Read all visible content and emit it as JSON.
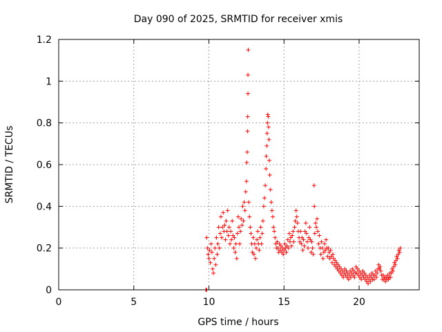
{
  "chart_data": {
    "type": "scatter",
    "title": "Day 090 of 2025, SRMTID for receiver xmis",
    "xlabel": "GPS time / hours",
    "ylabel": "SRMTID / TECUs",
    "xlim": [
      0,
      24
    ],
    "ylim": [
      0,
      1.2
    ],
    "xticks": [
      0,
      5,
      10,
      15,
      20
    ],
    "xtick_labels": [
      "0",
      "5",
      "10",
      "15",
      "20"
    ],
    "yticks": [
      0,
      0.2,
      0.4,
      0.6,
      0.8,
      1.0,
      1.2
    ],
    "ytick_labels": [
      "0",
      "0.2",
      "0.4",
      "0.6",
      "0.8",
      "1",
      "1.2"
    ],
    "grid": true,
    "marker": "+",
    "color": "#ff0000",
    "series": [
      {
        "name": "SRMTID",
        "points": [
          [
            9.8,
            0.0
          ],
          [
            9.82,
            0.0
          ],
          [
            9.85,
            0.0
          ],
          [
            9.85,
            0.25
          ],
          [
            9.9,
            0.2
          ],
          [
            9.95,
            0.17
          ],
          [
            10.0,
            0.15
          ],
          [
            10.05,
            0.19
          ],
          [
            10.1,
            0.13
          ],
          [
            10.15,
            0.22
          ],
          [
            10.2,
            0.18
          ],
          [
            10.25,
            0.1
          ],
          [
            10.3,
            0.08
          ],
          [
            10.35,
            0.15
          ],
          [
            10.4,
            0.2
          ],
          [
            10.45,
            0.12
          ],
          [
            10.5,
            0.25
          ],
          [
            10.55,
            0.17
          ],
          [
            10.6,
            0.22
          ],
          [
            10.65,
            0.3
          ],
          [
            10.7,
            0.2
          ],
          [
            10.75,
            0.27
          ],
          [
            10.8,
            0.35
          ],
          [
            10.85,
            0.25
          ],
          [
            10.9,
            0.3
          ],
          [
            10.95,
            0.37
          ],
          [
            11.0,
            0.28
          ],
          [
            11.05,
            0.31
          ],
          [
            11.1,
            0.24
          ],
          [
            11.15,
            0.33
          ],
          [
            11.2,
            0.28
          ],
          [
            11.25,
            0.38
          ],
          [
            11.3,
            0.26
          ],
          [
            11.35,
            0.3
          ],
          [
            11.4,
            0.22
          ],
          [
            11.45,
            0.28
          ],
          [
            11.5,
            0.24
          ],
          [
            11.55,
            0.33
          ],
          [
            11.6,
            0.26
          ],
          [
            11.65,
            0.2
          ],
          [
            11.7,
            0.25
          ],
          [
            11.75,
            0.18
          ],
          [
            11.8,
            0.22
          ],
          [
            11.85,
            0.15
          ],
          [
            11.9,
            0.27
          ],
          [
            11.95,
            0.35
          ],
          [
            12.0,
            0.3
          ],
          [
            12.05,
            0.22
          ],
          [
            12.1,
            0.28
          ],
          [
            12.15,
            0.34
          ],
          [
            12.2,
            0.31
          ],
          [
            12.25,
            0.4
          ],
          [
            12.3,
            0.33
          ],
          [
            12.35,
            0.42
          ],
          [
            12.4,
            0.38
          ],
          [
            12.45,
            0.47
          ],
          [
            12.5,
            0.52
          ],
          [
            12.52,
            0.61
          ],
          [
            12.55,
            0.66
          ],
          [
            12.57,
            0.76
          ],
          [
            12.58,
            0.83
          ],
          [
            12.6,
            0.94
          ],
          [
            12.6,
            1.03
          ],
          [
            12.62,
            1.15
          ],
          [
            12.65,
            0.42
          ],
          [
            12.7,
            0.35
          ],
          [
            12.75,
            0.3
          ],
          [
            12.8,
            0.27
          ],
          [
            12.85,
            0.22
          ],
          [
            12.9,
            0.18
          ],
          [
            12.95,
            0.25
          ],
          [
            13.0,
            0.17
          ],
          [
            13.05,
            0.22
          ],
          [
            13.1,
            0.15
          ],
          [
            13.15,
            0.2
          ],
          [
            13.2,
            0.24
          ],
          [
            13.25,
            0.28
          ],
          [
            13.3,
            0.22
          ],
          [
            13.35,
            0.19
          ],
          [
            13.4,
            0.25
          ],
          [
            13.45,
            0.3
          ],
          [
            13.5,
            0.22
          ],
          [
            13.55,
            0.27
          ],
          [
            13.6,
            0.33
          ],
          [
            13.65,
            0.4
          ],
          [
            13.7,
            0.44
          ],
          [
            13.75,
            0.5
          ],
          [
            13.8,
            0.58
          ],
          [
            13.82,
            0.64
          ],
          [
            13.85,
            0.69
          ],
          [
            13.87,
            0.75
          ],
          [
            13.9,
            0.8
          ],
          [
            13.92,
            0.84
          ],
          [
            13.95,
            0.83
          ],
          [
            13.97,
            0.78
          ],
          [
            14.0,
            0.72
          ],
          [
            14.02,
            0.62
          ],
          [
            14.05,
            0.55
          ],
          [
            14.1,
            0.48
          ],
          [
            14.15,
            0.42
          ],
          [
            14.2,
            0.38
          ],
          [
            14.25,
            0.35
          ],
          [
            14.3,
            0.3
          ],
          [
            14.35,
            0.28
          ],
          [
            14.4,
            0.25
          ],
          [
            14.45,
            0.22
          ],
          [
            14.5,
            0.2
          ],
          [
            14.55,
            0.23
          ],
          [
            14.6,
            0.2
          ],
          [
            14.65,
            0.18
          ],
          [
            14.7,
            0.22
          ],
          [
            14.75,
            0.19
          ],
          [
            14.8,
            0.21
          ],
          [
            14.85,
            0.18
          ],
          [
            14.9,
            0.2
          ],
          [
            14.95,
            0.17
          ],
          [
            15.0,
            0.19
          ],
          [
            15.05,
            0.22
          ],
          [
            15.1,
            0.2
          ],
          [
            15.15,
            0.18
          ],
          [
            15.2,
            0.21
          ],
          [
            15.25,
            0.24
          ],
          [
            15.3,
            0.2
          ],
          [
            15.35,
            0.27
          ],
          [
            15.4,
            0.23
          ],
          [
            15.45,
            0.25
          ],
          [
            15.5,
            0.21
          ],
          [
            15.55,
            0.26
          ],
          [
            15.6,
            0.28
          ],
          [
            15.65,
            0.23
          ],
          [
            15.7,
            0.3
          ],
          [
            15.75,
            0.33
          ],
          [
            15.8,
            0.38
          ],
          [
            15.85,
            0.35
          ],
          [
            15.9,
            0.32
          ],
          [
            15.95,
            0.28
          ],
          [
            16.0,
            0.25
          ],
          [
            16.05,
            0.23
          ],
          [
            16.1,
            0.28
          ],
          [
            16.15,
            0.22
          ],
          [
            16.2,
            0.25
          ],
          [
            16.25,
            0.19
          ],
          [
            16.3,
            0.24
          ],
          [
            16.35,
            0.21
          ],
          [
            16.4,
            0.28
          ],
          [
            16.45,
            0.32
          ],
          [
            16.5,
            0.27
          ],
          [
            16.55,
            0.23
          ],
          [
            16.6,
            0.2
          ],
          [
            16.65,
            0.25
          ],
          [
            16.7,
            0.3
          ],
          [
            16.75,
            0.24
          ],
          [
            16.8,
            0.18
          ],
          [
            16.85,
            0.23
          ],
          [
            16.9,
            0.2
          ],
          [
            16.95,
            0.17
          ],
          [
            17.0,
            0.5
          ],
          [
            17.02,
            0.4
          ],
          [
            17.05,
            0.27
          ],
          [
            17.1,
            0.32
          ],
          [
            17.15,
            0.3
          ],
          [
            17.2,
            0.34
          ],
          [
            17.25,
            0.28
          ],
          [
            17.3,
            0.22
          ],
          [
            17.35,
            0.26
          ],
          [
            17.4,
            0.2
          ],
          [
            17.45,
            0.17
          ],
          [
            17.5,
            0.23
          ],
          [
            17.55,
            0.2
          ],
          [
            17.6,
            0.15
          ],
          [
            17.65,
            0.18
          ],
          [
            17.7,
            0.22
          ],
          [
            17.75,
            0.19
          ],
          [
            17.8,
            0.24
          ],
          [
            17.85,
            0.2
          ],
          [
            17.9,
            0.16
          ],
          [
            17.95,
            0.2
          ],
          [
            18.0,
            0.18
          ],
          [
            18.05,
            0.15
          ],
          [
            18.1,
            0.19
          ],
          [
            18.15,
            0.16
          ],
          [
            18.2,
            0.13
          ],
          [
            18.25,
            0.17
          ],
          [
            18.3,
            0.15
          ],
          [
            18.35,
            0.12
          ],
          [
            18.4,
            0.14
          ],
          [
            18.45,
            0.11
          ],
          [
            18.5,
            0.13
          ],
          [
            18.55,
            0.1
          ],
          [
            18.6,
            0.12
          ],
          [
            18.65,
            0.09
          ],
          [
            18.7,
            0.11
          ],
          [
            18.75,
            0.08
          ],
          [
            18.8,
            0.1
          ],
          [
            18.85,
            0.07
          ],
          [
            18.9,
            0.09
          ],
          [
            18.95,
            0.06
          ],
          [
            19.0,
            0.08
          ],
          [
            19.05,
            0.1
          ],
          [
            19.1,
            0.07
          ],
          [
            19.15,
            0.09
          ],
          [
            19.2,
            0.06
          ],
          [
            19.25,
            0.08
          ],
          [
            19.3,
            0.05
          ],
          [
            19.35,
            0.07
          ],
          [
            19.4,
            0.09
          ],
          [
            19.45,
            0.06
          ],
          [
            19.5,
            0.08
          ],
          [
            19.55,
            0.1
          ],
          [
            19.6,
            0.07
          ],
          [
            19.65,
            0.09
          ],
          [
            19.7,
            0.06
          ],
          [
            19.75,
            0.08
          ],
          [
            19.8,
            0.11
          ],
          [
            19.85,
            0.08
          ],
          [
            19.9,
            0.1
          ],
          [
            19.95,
            0.07
          ],
          [
            20.0,
            0.09
          ],
          [
            20.05,
            0.06
          ],
          [
            20.1,
            0.08
          ],
          [
            20.15,
            0.05
          ],
          [
            20.2,
            0.07
          ],
          [
            20.25,
            0.09
          ],
          [
            20.3,
            0.06
          ],
          [
            20.35,
            0.08
          ],
          [
            20.4,
            0.05
          ],
          [
            20.45,
            0.07
          ],
          [
            20.5,
            0.04
          ],
          [
            20.55,
            0.06
          ],
          [
            20.6,
            0.03
          ],
          [
            20.65,
            0.05
          ],
          [
            20.7,
            0.07
          ],
          [
            20.75,
            0.04
          ],
          [
            20.8,
            0.06
          ],
          [
            20.85,
            0.08
          ],
          [
            20.9,
            0.05
          ],
          [
            20.95,
            0.07
          ],
          [
            21.0,
            0.05
          ],
          [
            21.05,
            0.07
          ],
          [
            21.1,
            0.09
          ],
          [
            21.15,
            0.06
          ],
          [
            21.2,
            0.08
          ],
          [
            21.25,
            0.1
          ],
          [
            21.3,
            0.12
          ],
          [
            21.35,
            0.1
          ],
          [
            21.4,
            0.11
          ],
          [
            21.45,
            0.09
          ],
          [
            21.5,
            0.07
          ],
          [
            21.55,
            0.05
          ],
          [
            21.6,
            0.07
          ],
          [
            21.65,
            0.05
          ],
          [
            21.7,
            0.06
          ],
          [
            21.75,
            0.04
          ],
          [
            21.8,
            0.06
          ],
          [
            21.85,
            0.05
          ],
          [
            21.9,
            0.07
          ],
          [
            21.95,
            0.05
          ],
          [
            22.0,
            0.06
          ],
          [
            22.05,
            0.08
          ],
          [
            22.1,
            0.06
          ],
          [
            22.15,
            0.08
          ],
          [
            22.2,
            0.1
          ],
          [
            22.25,
            0.09
          ],
          [
            22.3,
            0.11
          ],
          [
            22.35,
            0.13
          ],
          [
            22.4,
            0.12
          ],
          [
            22.45,
            0.14
          ],
          [
            22.5,
            0.16
          ],
          [
            22.55,
            0.15
          ],
          [
            22.6,
            0.17
          ],
          [
            22.65,
            0.19
          ],
          [
            22.7,
            0.18
          ],
          [
            22.75,
            0.2
          ]
        ]
      }
    ]
  }
}
